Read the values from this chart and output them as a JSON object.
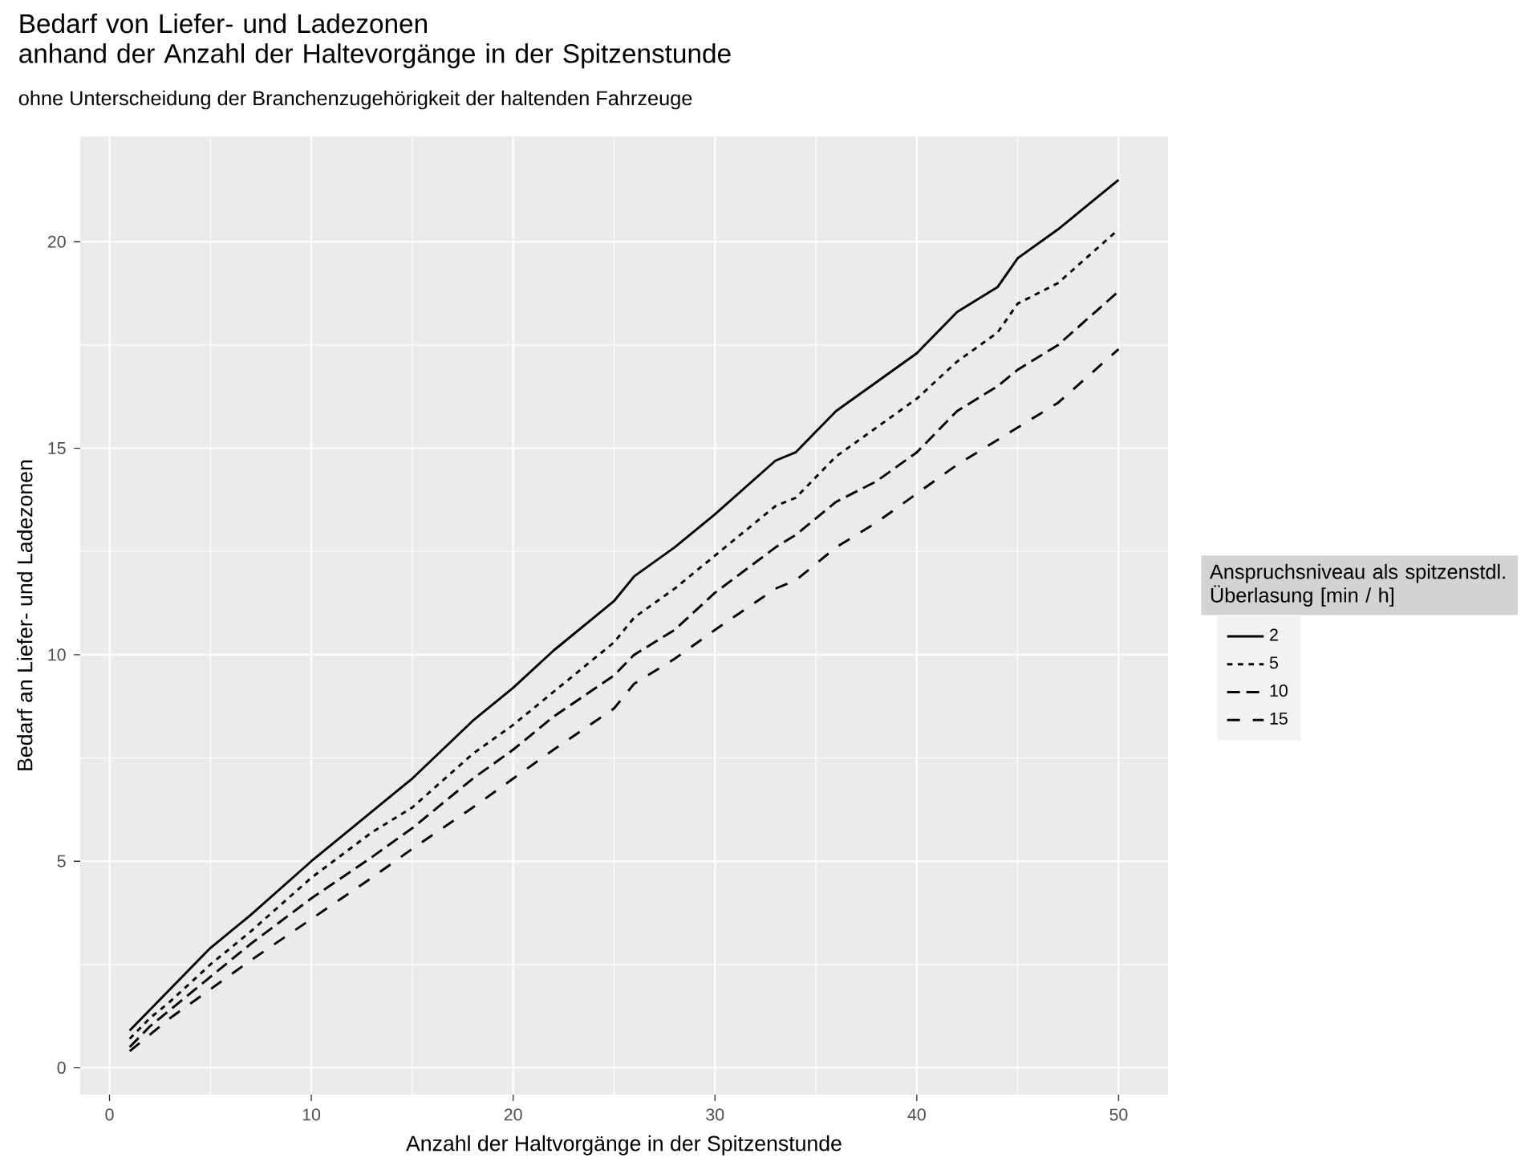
{
  "chart_data": {
    "type": "line",
    "title": "Bedarf von Liefer- und Ladezonen\nanhand der Anzahl der Haltevorgänge in der Spitzenstunde",
    "subtitle": "ohne Unterscheidung der Branchenzugehörigkeit der haltenden Fahrzeuge",
    "xlabel": "Anzahl der Haltvorgänge in der Spitzenstunde",
    "ylabel": "Bedarf an Liefer- und Ladezonen",
    "legend_title": "Anspruchsniveau als spitzenstdl. Überlasung [min / h]",
    "legend": "right",
    "grid": true,
    "marker": "none",
    "x": [
      1,
      2,
      3,
      5,
      7,
      10,
      13,
      15,
      18,
      20,
      22,
      25,
      26,
      28,
      30,
      33,
      34,
      36,
      38,
      40,
      42,
      44,
      45,
      47,
      50
    ],
    "xlim": [
      -1.45,
      52.45
    ],
    "xticks": [
      0,
      10,
      20,
      30,
      40,
      50
    ],
    "ylim": [
      -0.65,
      22.55
    ],
    "yticks": [
      0,
      5,
      10,
      15,
      20
    ],
    "series": [
      {
        "name": "2",
        "color": "#000000",
        "line_style": "solid",
        "values": [
          0.9,
          1.4,
          1.9,
          2.9,
          3.7,
          5.0,
          6.2,
          7.0,
          8.4,
          9.2,
          10.1,
          11.3,
          11.9,
          12.6,
          13.4,
          14.7,
          14.9,
          15.9,
          16.6,
          17.3,
          18.3,
          18.9,
          19.6,
          20.3,
          21.5
        ]
      },
      {
        "name": "5",
        "color": "#000000",
        "line_style": "dotted",
        "values": [
          0.7,
          1.2,
          1.6,
          2.5,
          3.3,
          4.6,
          5.7,
          6.3,
          7.6,
          8.3,
          9.1,
          10.3,
          10.9,
          11.6,
          12.4,
          13.6,
          13.8,
          14.8,
          15.5,
          16.2,
          17.1,
          17.8,
          18.5,
          19.0,
          20.3
        ]
      },
      {
        "name": "10",
        "color": "#000000",
        "line_style": "dashed",
        "values": [
          0.5,
          1.0,
          1.4,
          2.2,
          3.0,
          4.1,
          5.1,
          5.8,
          7.0,
          7.7,
          8.5,
          9.5,
          10.0,
          10.6,
          11.5,
          12.6,
          12.9,
          13.7,
          14.2,
          14.9,
          15.9,
          16.5,
          16.9,
          17.5,
          18.8
        ]
      },
      {
        "name": "15",
        "color": "#000000",
        "line_style": "dashed",
        "values": [
          0.4,
          0.8,
          1.2,
          1.9,
          2.6,
          3.6,
          4.6,
          5.3,
          6.3,
          7.0,
          7.7,
          8.7,
          9.3,
          9.9,
          10.6,
          11.6,
          11.8,
          12.6,
          13.2,
          13.9,
          14.6,
          15.2,
          15.5,
          16.1,
          17.4
        ]
      }
    ]
  }
}
